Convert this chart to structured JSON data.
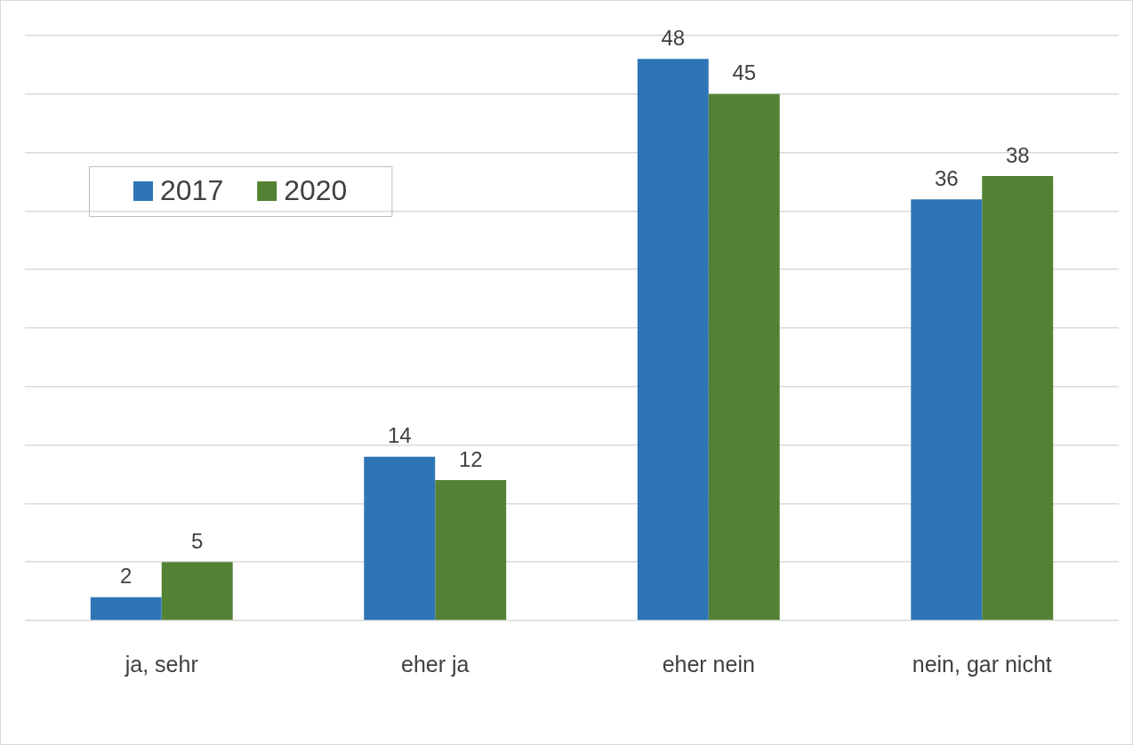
{
  "chart_data": {
    "type": "bar",
    "categories": [
      "ja, sehr",
      "eher ja",
      "eher nein",
      "nein, gar nicht"
    ],
    "series": [
      {
        "name": "2017",
        "color": "#2e75b6",
        "values": [
          2,
          14,
          48,
          36
        ]
      },
      {
        "name": "2020",
        "color": "#548235",
        "values": [
          5,
          12,
          45,
          38
        ]
      }
    ],
    "ylim": [
      0,
      50
    ],
    "yticks": [
      {
        "value": 0,
        "label": null
      },
      {
        "value": 5,
        "label": null
      },
      {
        "value": 10,
        "label": null
      },
      {
        "value": 15,
        "label": null
      },
      {
        "value": 20,
        "label": null
      },
      {
        "value": 25,
        "label": null
      },
      {
        "value": 30,
        "label": null
      },
      {
        "value": 35,
        "label": null
      },
      {
        "value": 40,
        "label": null
      },
      {
        "value": 45,
        "label": null
      },
      {
        "value": 50,
        "label": null
      }
    ],
    "tick_labels": "x",
    "grid": "y",
    "legend": "top left",
    "data_labels": true
  }
}
